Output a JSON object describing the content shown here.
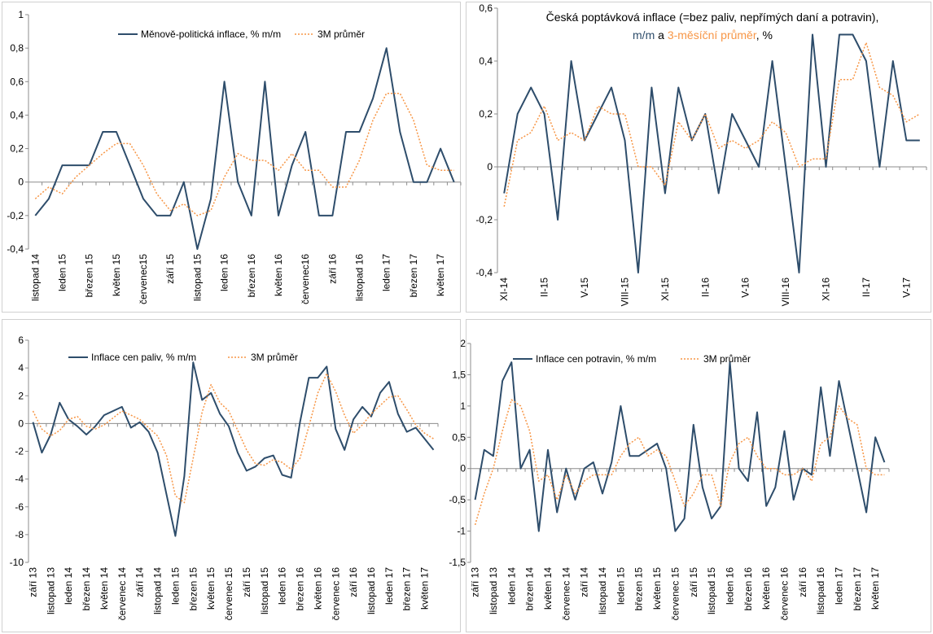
{
  "colors": {
    "series_line": "#2E4D6B",
    "average_line": "#F79646",
    "zero_line": "#8C8C8C",
    "frame": "#D0D0D0"
  },
  "chart_data": [
    {
      "type": "line",
      "x": [
        "listopad 14",
        "prosinec 14",
        "leden 15",
        "únor 15",
        "březen 15",
        "duben 15",
        "květen 15",
        "červen 15",
        "červenec15",
        "srpen 15",
        "září 15",
        "říjen 15",
        "listopad 15",
        "prosinec 15",
        "leden 16",
        "únor 16",
        "březen 16",
        "duben 16",
        "květen 16",
        "červen 16",
        "červenec16",
        "srpen 16",
        "září 16",
        "říjen 16",
        "listopad 16",
        "prosinec 16",
        "leden 17",
        "únor 17",
        "březen 17",
        "duben 17",
        "květen 17",
        "červen 17"
      ],
      "x_tick_labels": [
        "listopad 14",
        "leden 15",
        "březen 15",
        "květen 15",
        "červenec15",
        "září 15",
        "listopad 15",
        "leden 16",
        "březen 16",
        "květen 16",
        "červenec16",
        "září 16",
        "listopad 16",
        "leden 17",
        "březen 17",
        "květen 17"
      ],
      "ylim": [
        -0.4,
        1.0
      ],
      "y_ticks": [
        "-0,4",
        "-0,2",
        "0",
        "0,2",
        "0,4",
        "0,6",
        "0,8",
        "1"
      ],
      "series": [
        {
          "name": "Měnově-politická inflace, % m/m",
          "values": [
            -0.2,
            -0.1,
            0.1,
            0.1,
            0.1,
            0.3,
            0.3,
            0.1,
            -0.1,
            -0.2,
            -0.2,
            0.0,
            -0.4,
            -0.1,
            0.6,
            0.0,
            -0.2,
            0.6,
            -0.2,
            0.1,
            0.3,
            -0.2,
            -0.2,
            0.3,
            0.3,
            0.5,
            0.8,
            0.3,
            0.0,
            0.0,
            0.2,
            0.0
          ]
        },
        {
          "name": "3M průměr",
          "values": [
            -0.1,
            -0.03,
            -0.07,
            0.03,
            0.1,
            0.17,
            0.23,
            0.23,
            0.1,
            -0.07,
            -0.17,
            -0.13,
            -0.2,
            -0.17,
            0.03,
            0.17,
            0.13,
            0.13,
            0.07,
            0.17,
            0.07,
            0.07,
            -0.03,
            -0.03,
            0.13,
            0.37,
            0.53,
            0.53,
            0.37,
            0.1,
            0.07,
            0.07
          ]
        }
      ]
    },
    {
      "type": "line",
      "title_lines": [
        "Česká poptávková inflace (=bez paliv, nepřímých daní a potravin),",
        "m/m",
        "a",
        "3-měsíční průměr",
        ", %"
      ],
      "x": [
        "XI-14",
        "XII-14",
        "I-15",
        "II-15",
        "III-15",
        "IV-15",
        "V-15",
        "VI-15",
        "VII-15",
        "VIII-15",
        "IX-15",
        "X-15",
        "XI-15",
        "XII-15",
        "I-16",
        "II-16",
        "III-16",
        "IV-16",
        "V-16",
        "VI-16",
        "VII-16",
        "VIII-16",
        "IX-16",
        "X-16",
        "XI-16",
        "XII-16",
        "I-17",
        "II-17",
        "III-17",
        "IV-17",
        "V-17",
        "VI-17"
      ],
      "x_tick_labels": [
        "XI-14",
        "II-15",
        "V-15",
        "VIII-15",
        "XI-15",
        "II-16",
        "V-16",
        "VIII-16",
        "XI-16",
        "II-17",
        "V-17"
      ],
      "ylim": [
        -0.4,
        0.6
      ],
      "y_ticks": [
        "-0,4",
        "-0,2",
        "0",
        "0,2",
        "0,4",
        "0,6"
      ],
      "series": [
        {
          "name": "m/m",
          "values": [
            -0.1,
            0.2,
            0.3,
            0.2,
            -0.2,
            0.4,
            0.1,
            0.2,
            0.3,
            0.1,
            -0.4,
            0.3,
            -0.1,
            0.3,
            0.1,
            0.2,
            -0.1,
            0.2,
            0.1,
            0.0,
            0.4,
            0.0,
            -0.4,
            0.5,
            0.0,
            0.5,
            0.5,
            0.4,
            0.0,
            0.4,
            0.1,
            0.1
          ]
        },
        {
          "name": "3-měsíční průměr",
          "values": [
            -0.15,
            0.1,
            0.13,
            0.23,
            0.1,
            0.13,
            0.1,
            0.23,
            0.2,
            0.2,
            0.0,
            0.0,
            -0.07,
            0.17,
            0.1,
            0.2,
            0.07,
            0.1,
            0.07,
            0.1,
            0.17,
            0.13,
            0.0,
            0.03,
            0.03,
            0.33,
            0.33,
            0.47,
            0.3,
            0.27,
            0.17,
            0.2
          ]
        }
      ]
    },
    {
      "type": "line",
      "x": [
        "září 13",
        "říjen 13",
        "listopad 13",
        "prosinec 13",
        "leden 14",
        "únor 14",
        "březen 14",
        "duben 14",
        "květen 14",
        "červen 14",
        "červenec 14",
        "srpen 14",
        "září 14",
        "říjen 14",
        "listopad 14",
        "prosinec 14",
        "leden 15",
        "únor 15",
        "březen 15",
        "duben 15",
        "květen 15",
        "červen 15",
        "červenec 15",
        "srpen 15",
        "září 15",
        "říjen 15",
        "listopad 15",
        "prosinec 15",
        "leden 16",
        "únor 16",
        "březen 16",
        "duben 16",
        "květen 16",
        "červen 16",
        "červenec 16",
        "srpen 16",
        "září 16",
        "říjen 16",
        "listopad 16",
        "prosinec 16",
        "leden 17",
        "únor 17",
        "březen 17",
        "duben 17",
        "květen 17",
        "červen 17"
      ],
      "x_tick_labels": [
        "září 13",
        "listopad 13",
        "leden 14",
        "březen 14",
        "květen 14",
        "červenec 14",
        "září 14",
        "listopad 14",
        "leden 15",
        "březen 15",
        "květen 15",
        "červenec 15",
        "září 15",
        "listopad 15",
        "leden 16",
        "březen 16",
        "květen 16",
        "červenec 16",
        "září 16",
        "listopad 16",
        "leden 17",
        "březen 17",
        "květen 17"
      ],
      "ylim": [
        -10,
        6
      ],
      "y_ticks": [
        "-10",
        "-8",
        "-6",
        "-4",
        "-2",
        "0",
        "2",
        "4",
        "6"
      ],
      "series": [
        {
          "name": "Inflace cen paliv, % m/m",
          "values": [
            0.1,
            -2.1,
            -0.8,
            1.5,
            0.3,
            -0.2,
            -0.8,
            -0.2,
            0.6,
            0.9,
            1.2,
            -0.3,
            0.1,
            -0.6,
            -2.1,
            -5.1,
            -8.1,
            -3.8,
            4.4,
            1.7,
            2.2,
            0.7,
            -0.2,
            -2.1,
            -3.4,
            -3.1,
            -2.5,
            -2.3,
            -3.7,
            -3.9,
            0.1,
            3.3,
            3.3,
            4.1,
            -0.4,
            -1.9,
            0.3,
            1.2,
            0.5,
            2.2,
            3.0,
            0.7,
            -0.6,
            -0.3,
            -1.1,
            -1.9
          ]
        },
        {
          "name": "3M průměr",
          "values": [
            0.9,
            -0.4,
            -0.9,
            -0.5,
            0.3,
            0.5,
            -0.2,
            -0.4,
            -0.1,
            0.4,
            0.9,
            0.6,
            0.3,
            -0.3,
            -0.9,
            -2.3,
            -5.2,
            -5.7,
            -2.5,
            0.8,
            2.8,
            1.5,
            0.9,
            -0.5,
            -1.9,
            -2.9,
            -3.0,
            -2.6,
            -2.8,
            -3.3,
            -2.5,
            -0.2,
            2.2,
            3.6,
            2.3,
            0.6,
            -0.7,
            -0.1,
            0.7,
            1.3,
            1.9,
            2.0,
            1.0,
            -0.1,
            -0.7,
            -1.1
          ]
        }
      ]
    },
    {
      "type": "line",
      "x": [
        "září 13",
        "říjen 13",
        "listopad 13",
        "prosinec 13",
        "leden 14",
        "únor 14",
        "březen 14",
        "duben 14",
        "květen 14",
        "červen 14",
        "červenec 14",
        "srpen 14",
        "září 14",
        "říjen 14",
        "listopad 14",
        "prosinec 14",
        "leden 15",
        "únor 15",
        "březen 15",
        "duben 15",
        "květen 15",
        "červen 15",
        "červenec 15",
        "srpen 15",
        "září 15",
        "říjen 15",
        "listopad 15",
        "prosinec 15",
        "leden 16",
        "únor 16",
        "březen 16",
        "duben 16",
        "květen 16",
        "červen 16",
        "červenec 16",
        "srpen 16",
        "září 16",
        "říjen 16",
        "listopad 16",
        "prosinec 16",
        "leden 17",
        "únor 17",
        "březen 17",
        "duben 17",
        "květen 17",
        "červen 17"
      ],
      "x_tick_labels": [
        "září 13",
        "listopad 13",
        "leden 14",
        "březen 14",
        "květen 14",
        "červenec 14",
        "září 14",
        "listopad 14",
        "leden 15",
        "březen 15",
        "květen 15",
        "červenec 15",
        "září 15",
        "listopad 15",
        "leden 16",
        "březen 16",
        "květen 16",
        "červenec 16",
        "září 16",
        "listopad 16",
        "leden 17",
        "březen 17",
        "květen 17"
      ],
      "ylim": [
        -1.5,
        2
      ],
      "y_ticks": [
        "-1,5",
        "-1",
        "-0,5",
        "0",
        "0,5",
        "1",
        "1,5",
        "2"
      ],
      "series": [
        {
          "name": "Inflace cen potravin, % m/m",
          "values": [
            -0.5,
            0.3,
            0.2,
            1.4,
            1.7,
            0.0,
            0.3,
            -1.0,
            0.3,
            -0.7,
            0.0,
            -0.5,
            0.0,
            0.1,
            -0.4,
            0.1,
            1.0,
            0.2,
            0.2,
            0.3,
            0.4,
            0.0,
            -1.0,
            -0.8,
            0.7,
            -0.3,
            -0.8,
            -0.6,
            1.7,
            0.0,
            -0.2,
            0.9,
            -0.6,
            -0.3,
            0.6,
            -0.5,
            0.0,
            -0.1,
            1.3,
            0.2,
            1.4,
            0.7,
            0.0,
            -0.7,
            0.5,
            0.1
          ]
        },
        {
          "name": "3M průměr",
          "values": [
            -0.9,
            -0.4,
            0.0,
            0.6,
            1.1,
            1.0,
            0.6,
            -0.2,
            -0.1,
            -0.5,
            -0.1,
            -0.4,
            -0.2,
            -0.1,
            -0.1,
            -0.1,
            0.2,
            0.4,
            0.5,
            0.2,
            0.3,
            0.2,
            -0.2,
            -0.6,
            -0.4,
            -0.1,
            -0.1,
            -0.6,
            0.1,
            0.4,
            0.5,
            0.2,
            0.0,
            0.0,
            -0.1,
            -0.1,
            0.0,
            -0.2,
            0.4,
            0.5,
            1.0,
            0.8,
            0.7,
            0.0,
            -0.1,
            -0.1
          ]
        }
      ]
    }
  ]
}
